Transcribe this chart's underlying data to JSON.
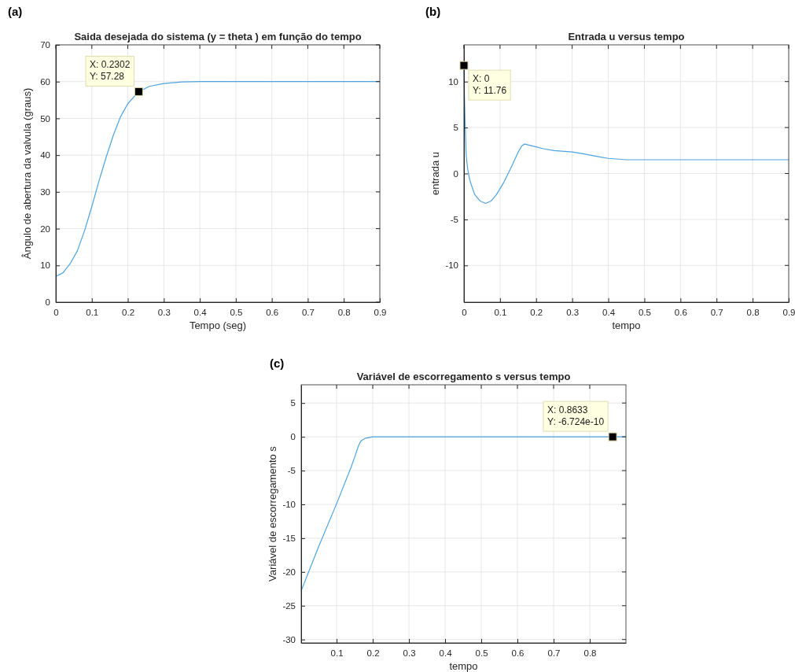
{
  "chart_data": [
    {
      "type": "line",
      "title": "Saida desejada do sistema (y = theta ) em função do tempo",
      "xlabel": "Tempo (seg)",
      "ylabel": "Ângulo de abertura da valvula (graus)",
      "xlim": [
        0,
        0.9
      ],
      "ylim": [
        0,
        70
      ],
      "xticks": [
        0,
        0.1,
        0.2,
        0.3,
        0.4,
        0.5,
        0.6,
        0.7,
        0.8,
        0.9
      ],
      "yticks": [
        0,
        10,
        20,
        30,
        40,
        50,
        60,
        70
      ],
      "grid": true,
      "line_style": "solid",
      "annotations": [
        "(a)",
        {
          "text": "X: 0.2302\nY: 57.28",
          "x": 0.2302,
          "y": 57.28
        }
      ],
      "series": [
        {
          "color": "#4da3e0",
          "x": [
            0,
            0.02,
            0.04,
            0.06,
            0.08,
            0.1,
            0.12,
            0.14,
            0.15,
            0.16,
            0.18,
            0.2,
            0.2302,
            0.26,
            0.3,
            0.35,
            0.4,
            0.5,
            0.9
          ],
          "values": [
            7,
            8,
            10.5,
            14,
            19.5,
            26,
            33,
            39.5,
            42.5,
            45.5,
            50.5,
            54,
            57.28,
            58.7,
            59.5,
            59.9,
            60,
            60,
            60
          ]
        }
      ]
    },
    {
      "type": "line",
      "title": "Entrada u versus tempo",
      "xlabel": "tempo",
      "ylabel": "entrada u",
      "xlim": [
        0,
        0.9
      ],
      "ylim": [
        -14,
        14
      ],
      "xticks": [
        0,
        0.1,
        0.2,
        0.3,
        0.4,
        0.5,
        0.6,
        0.7,
        0.8,
        0.9
      ],
      "yticks": [
        -10,
        -5,
        0,
        5,
        10
      ],
      "grid": true,
      "line_style": "solid",
      "annotations": [
        "(b)",
        {
          "text": "X: 0\nY: 11.76",
          "x": 0,
          "y": 11.76
        }
      ],
      "series": [
        {
          "color": "#4da3e0",
          "x": [
            0,
            0.001,
            0.003,
            0.006,
            0.01,
            0.015,
            0.02,
            0.03,
            0.045,
            0.06,
            0.075,
            0.09,
            0.11,
            0.13,
            0.15,
            0.16,
            0.168,
            0.18,
            0.2,
            0.22,
            0.25,
            0.3,
            0.33,
            0.37,
            0.4,
            0.45,
            0.5,
            0.9
          ],
          "values": [
            11.76,
            9,
            6,
            2.1,
            0.6,
            -0.5,
            -1.2,
            -2.3,
            -3,
            -3.25,
            -3,
            -2.3,
            -1,
            0.6,
            2.3,
            3,
            3.2,
            3.1,
            2.9,
            2.7,
            2.5,
            2.35,
            2.15,
            1.85,
            1.65,
            1.5,
            1.5,
            1.5
          ]
        }
      ]
    },
    {
      "type": "line",
      "title": "Variável de escorregamento s versus tempo",
      "xlabel": "tempo",
      "ylabel": "Variável de escorregamento s",
      "xlim": [
        0.002,
        0.9
      ],
      "ylim": [
        -30.5,
        7.7
      ],
      "xticks": [
        0.1,
        0.2,
        0.3,
        0.4,
        0.5,
        0.6,
        0.7,
        0.8
      ],
      "yticks": [
        -30,
        -25,
        -20,
        -15,
        -10,
        -5,
        0,
        5
      ],
      "grid": true,
      "line_style": "solid",
      "annotations": [
        "(c)",
        {
          "text": "X: 0.8633\nY: -6.724e-10",
          "x": 0.8633,
          "y": -6.724e-10
        }
      ],
      "series": [
        {
          "color": "#4da3e0",
          "x": [
            0.002,
            0.05,
            0.1,
            0.14,
            0.15,
            0.155,
            0.16,
            0.165,
            0.17,
            0.18,
            0.2,
            0.22,
            0.3,
            0.9
          ],
          "values": [
            -22.8,
            -16.3,
            -9.9,
            -4.5,
            -3,
            -2.2,
            -1.4,
            -0.8,
            -0.5,
            -0.2,
            0,
            0,
            0,
            0
          ]
        }
      ]
    }
  ]
}
